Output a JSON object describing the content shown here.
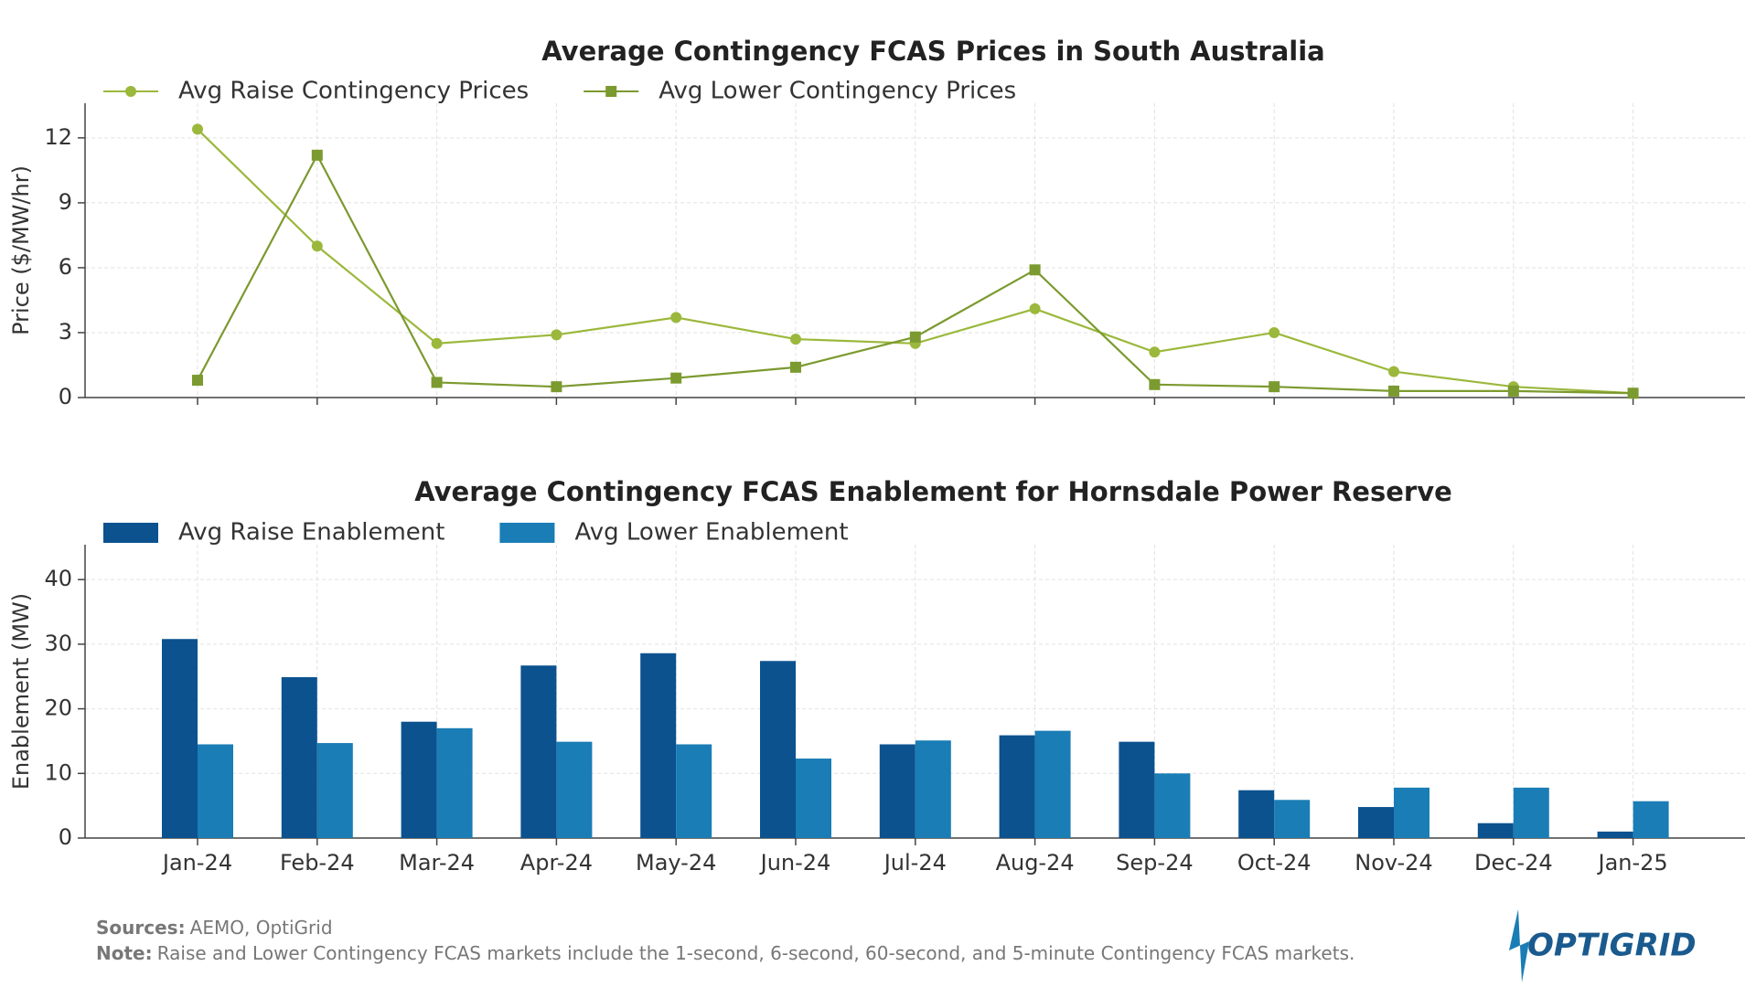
{
  "chart_data": [
    {
      "type": "line",
      "title": "Average Contingency FCAS Prices in South Australia",
      "y_label": "Price ($/MW/hr)",
      "categories": [
        null,
        null,
        null,
        null,
        null,
        null,
        null,
        null,
        null,
        null,
        null,
        null,
        null
      ],
      "series": [
        {
          "name": "Avg Raise Contingency Prices",
          "color": "#9bb83c",
          "marker": "circle",
          "values": [
            12.4,
            7.0,
            2.5,
            2.9,
            3.7,
            2.7,
            2.5,
            4.1,
            2.1,
            3.0,
            1.2,
            0.5,
            0.2
          ]
        },
        {
          "name": "Avg Lower Contingency Prices",
          "color": "#7b9a2f",
          "marker": "square",
          "values": [
            0.8,
            11.2,
            0.7,
            0.5,
            0.9,
            1.4,
            2.8,
            5.9,
            0.6,
            0.5,
            0.3,
            0.3,
            0.2
          ]
        }
      ],
      "ylim": [
        0,
        13.6
      ],
      "yticks": [
        0,
        3,
        6,
        9,
        12
      ],
      "grid": true
    },
    {
      "type": "bar",
      "title": "Average Contingency FCAS Enablement for Hornsdale Power Reserve",
      "y_label": "Enablement (MW)",
      "categories": [
        "Jan-24",
        "Feb-24",
        "Mar-24",
        "Apr-24",
        "May-24",
        "Jun-24",
        "Jul-24",
        "Aug-24",
        "Sep-24",
        "Oct-24",
        "Nov-24",
        "Dec-24",
        "Jan-25"
      ],
      "series": [
        {
          "name": "Avg Raise Enablement",
          "color": "#0b528f",
          "values": [
            30.8,
            24.9,
            18.0,
            26.7,
            28.6,
            27.4,
            14.5,
            15.9,
            14.9,
            7.4,
            4.8,
            2.3,
            1.0
          ]
        },
        {
          "name": "Avg Lower Enablement",
          "color": "#1a7db5",
          "values": [
            14.5,
            14.7,
            17.0,
            14.9,
            14.5,
            12.3,
            15.1,
            16.6,
            10.0,
            5.9,
            7.8,
            7.8,
            5.7
          ]
        }
      ],
      "ylim": [
        0,
        45.4
      ],
      "yticks": [
        0,
        10,
        20,
        30,
        40
      ],
      "grid": true
    }
  ],
  "footer": {
    "sources_label": "Sources:",
    "sources": "AEMO, OptiGrid",
    "note_label": "Note:",
    "note": "Raise and Lower Contingency FCAS markets include the 1-second, 6-second, 60-second, and 5-minute Contingency FCAS markets.",
    "logo": "OPTIGRID"
  }
}
